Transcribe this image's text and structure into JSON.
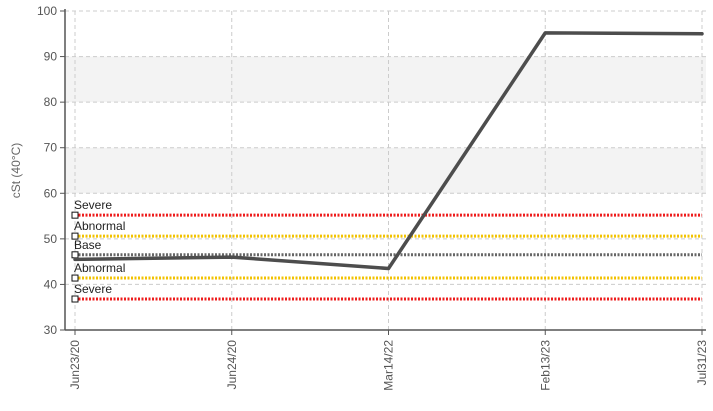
{
  "chart_data": {
    "type": "line",
    "title": "",
    "xlabel": "",
    "ylabel": "cSt (40°C)",
    "ylim": [
      30,
      100
    ],
    "yticks": [
      30,
      40,
      50,
      60,
      70,
      80,
      90,
      100
    ],
    "categories": [
      "Jun23/20",
      "Jun24/20",
      "Mar14/22",
      "Feb13/23",
      "Jul31/23"
    ],
    "grid": true,
    "band_color": "#f3f3f3",
    "series": [
      {
        "color": "#4d4d4d",
        "values": [
          45.5,
          46.0,
          43.5,
          95.2,
          95.0
        ]
      }
    ],
    "reference_lines": [
      {
        "label": "Severe",
        "value": 55.2,
        "color": "#ee1c1c"
      },
      {
        "label": "Abnormal",
        "value": 50.6,
        "color": "#f2c200"
      },
      {
        "label": "Base",
        "value": 46.5,
        "color": "#666666"
      },
      {
        "label": "Abnormal",
        "value": 41.4,
        "color": "#f2c200"
      },
      {
        "label": "Severe",
        "value": 36.8,
        "color": "#ee1c1c"
      }
    ]
  }
}
